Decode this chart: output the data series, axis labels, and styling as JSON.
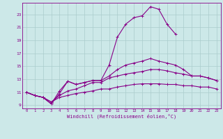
{
  "xlabel": "Windchill (Refroidissement éolien,°C)",
  "bg_color": "#cce8e8",
  "line_color": "#880088",
  "grid_color": "#aacccc",
  "ylim": [
    8.5,
    24.8
  ],
  "xlim": [
    -0.5,
    23.5
  ],
  "yticks": [
    9,
    11,
    13,
    15,
    17,
    19,
    21,
    23
  ],
  "xticks": [
    0,
    1,
    2,
    3,
    4,
    5,
    6,
    7,
    8,
    9,
    10,
    11,
    12,
    13,
    14,
    15,
    16,
    17,
    18,
    19,
    20,
    21,
    22,
    23
  ],
  "line1": [
    11,
    10.5,
    10.2,
    9.2,
    11.2,
    12.7,
    12.2,
    12.5,
    12.8,
    12.8,
    15.2,
    19.5,
    21.5,
    22.5,
    22.8,
    24.2,
    23.8,
    21.5,
    20.0,
    null,
    null,
    null,
    null,
    null
  ],
  "line2": [
    11,
    10.5,
    10.2,
    9.2,
    10.8,
    12.7,
    12.2,
    12.5,
    12.8,
    12.8,
    13.5,
    14.5,
    15.2,
    15.5,
    15.8,
    16.2,
    15.8,
    15.5,
    15.2,
    14.5,
    13.5,
    13.5,
    13.2,
    12.8
  ],
  "line3": [
    11,
    10.5,
    10.2,
    9.5,
    10.5,
    11.2,
    11.5,
    12.0,
    12.5,
    12.5,
    13.2,
    13.5,
    13.8,
    14.0,
    14.2,
    14.5,
    14.5,
    14.3,
    14.0,
    13.8,
    13.5,
    13.5,
    13.2,
    12.8
  ],
  "line4": [
    11,
    10.5,
    10.2,
    9.5,
    10.2,
    10.5,
    10.8,
    11.0,
    11.2,
    11.5,
    11.5,
    11.8,
    12.0,
    12.2,
    12.3,
    12.3,
    12.3,
    12.2,
    12.2,
    12.0,
    12.0,
    11.8,
    11.8,
    11.5
  ]
}
